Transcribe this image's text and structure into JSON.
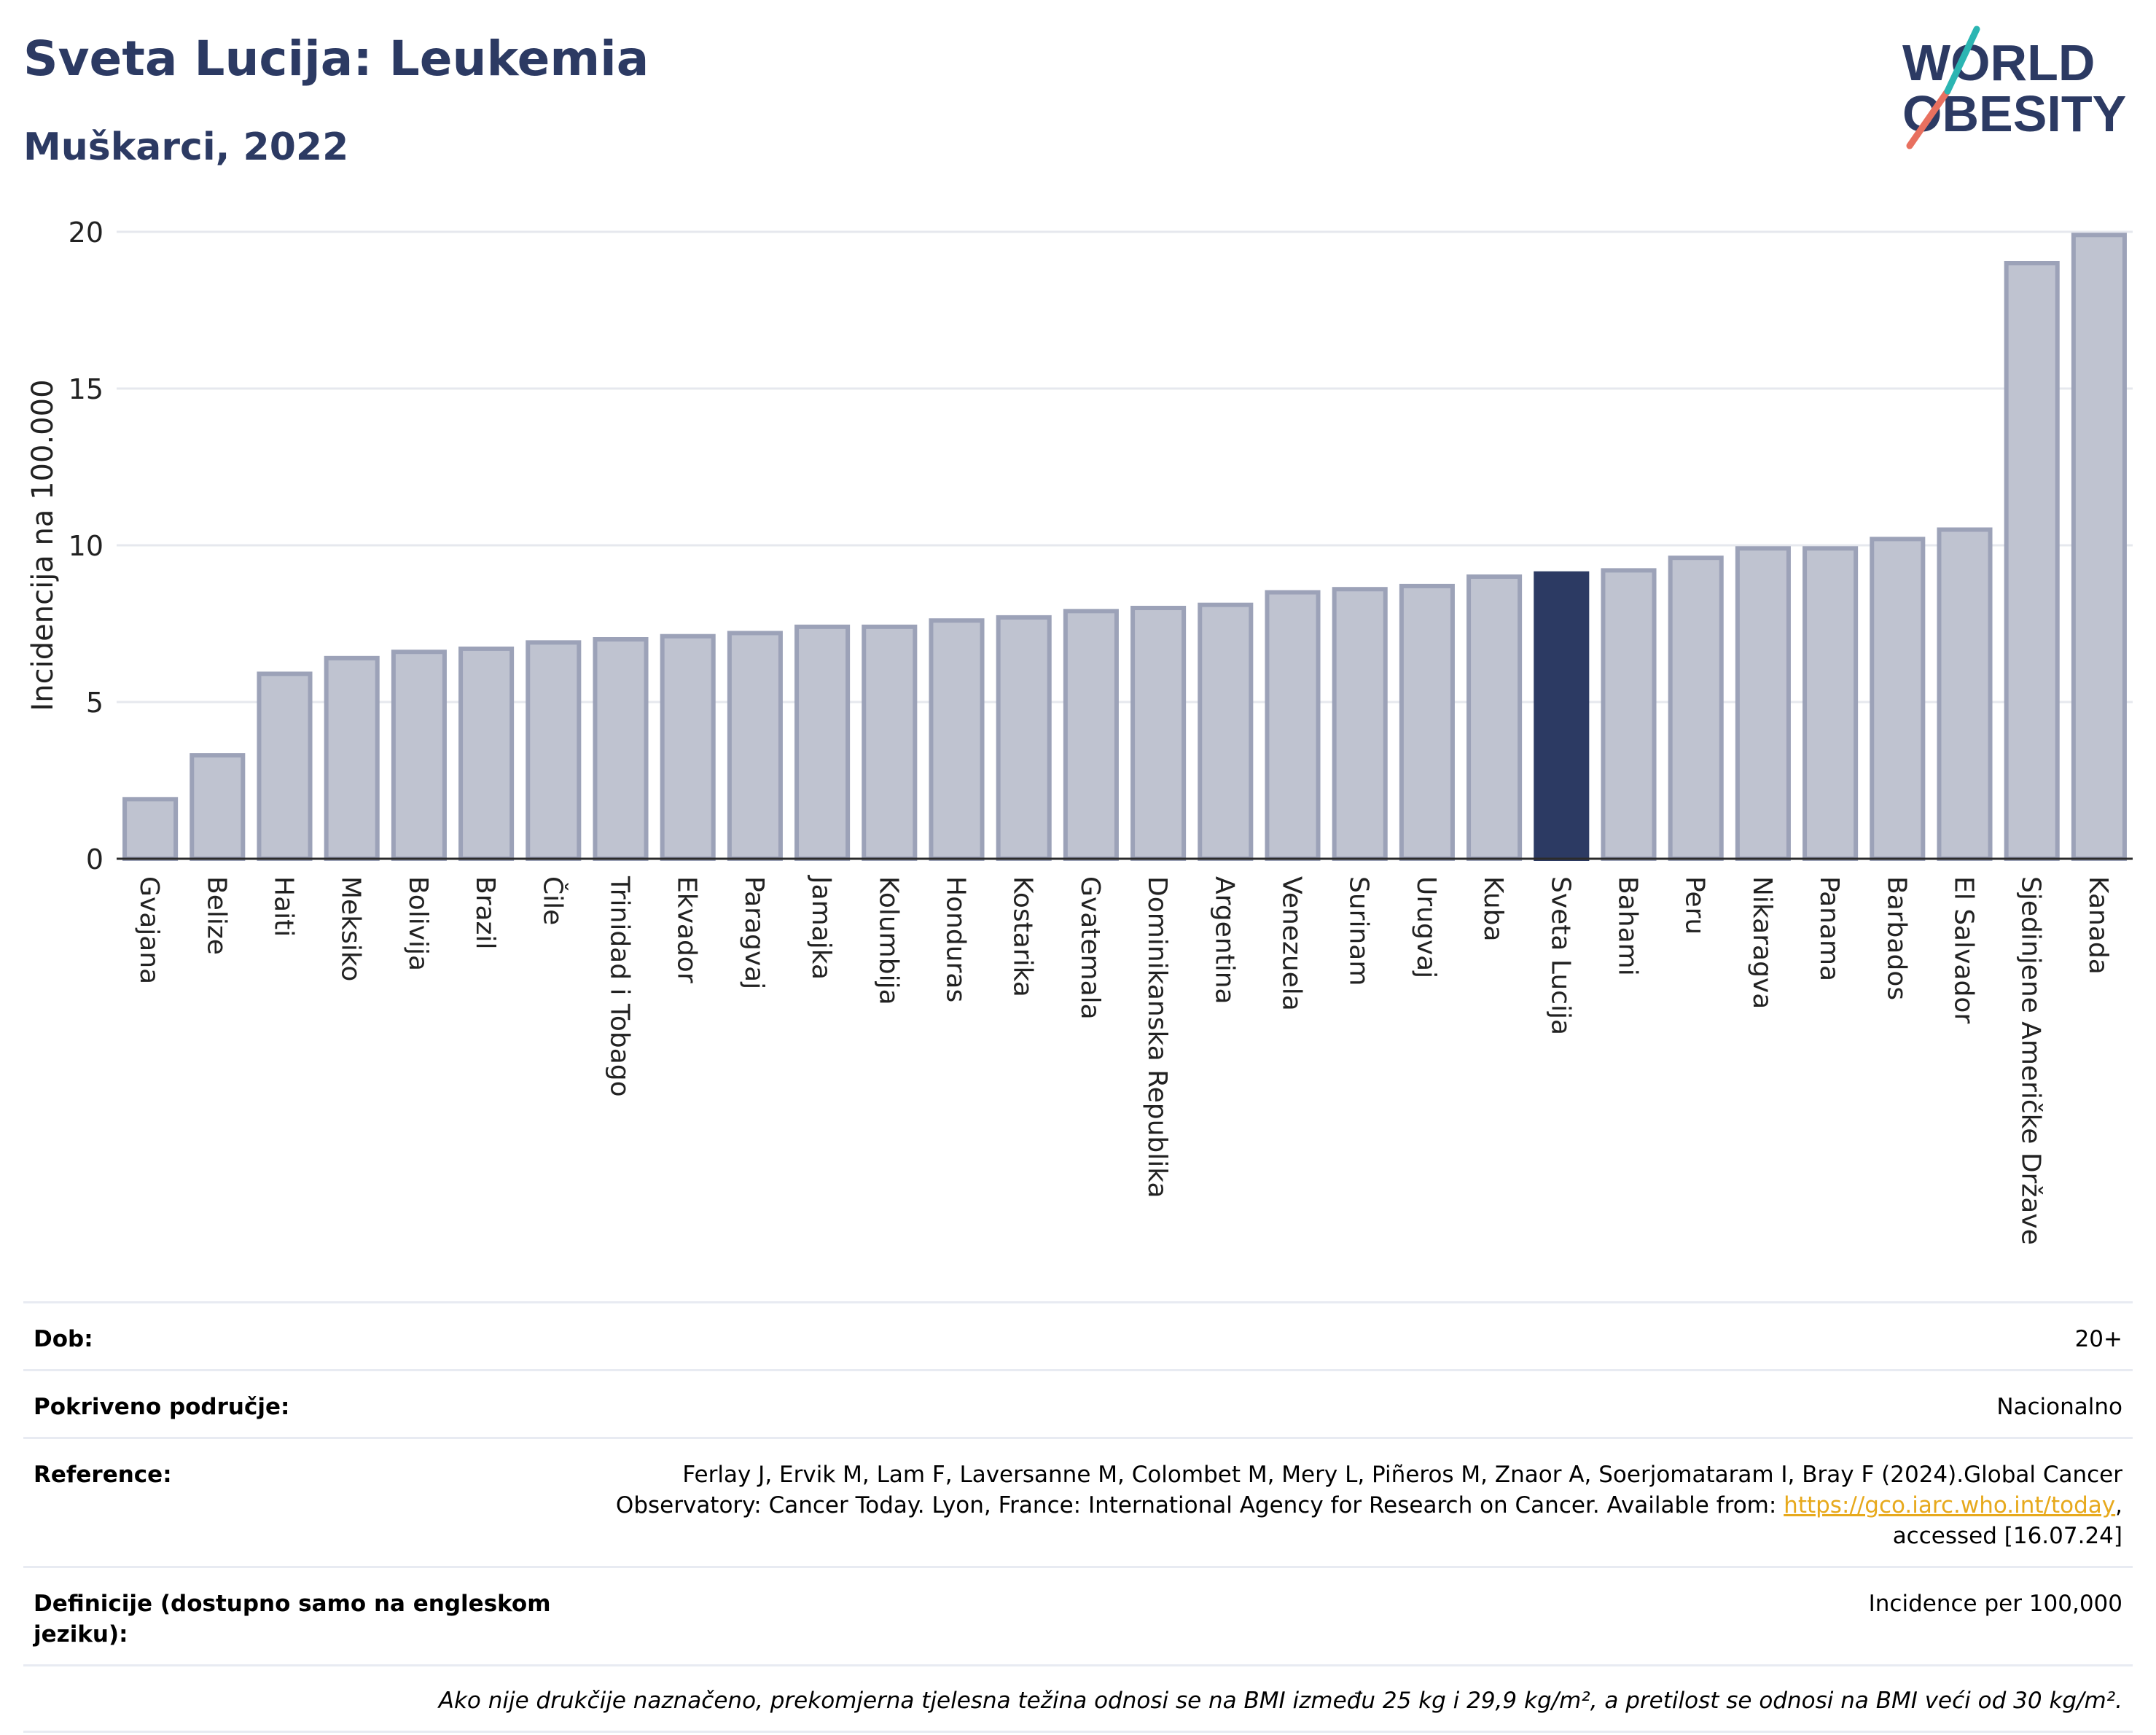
{
  "header": {
    "title": "Sveta Lucija: Leukemia",
    "subtitle": "Muškarci, 2022",
    "logo_text_line1": "WORLD",
    "logo_text_line2": "OBESITY"
  },
  "colors": {
    "brand_navy": "#2c3a63",
    "bar_fill": "#bfc3d0",
    "bar_stroke": "#9ca2b8",
    "highlight": "#2c3a63",
    "link": "#e7a91c",
    "logo_teal": "#2bb5b2",
    "logo_coral": "#e8705f"
  },
  "chart_data": {
    "type": "bar",
    "ylabel": "Incidencija na 100.000",
    "ylim": [
      0,
      20
    ],
    "yticks": [
      0,
      5,
      10,
      15,
      20
    ],
    "grid": true,
    "highlight_category": "Sveta Lucija",
    "categories": [
      "Gvajana",
      "Belize",
      "Haiti",
      "Meksiko",
      "Bolivija",
      "Brazil",
      "Čile",
      "Trinidad i Tobago",
      "Ekvador",
      "Paragvaj",
      "Jamajka",
      "Kolumbija",
      "Honduras",
      "Kostarika",
      "Gvatemala",
      "Dominikanska Republika",
      "Argentina",
      "Venezuela",
      "Surinam",
      "Urugvaj",
      "Kuba",
      "Sveta Lucija",
      "Bahami",
      "Peru",
      "Nikaragva",
      "Panama",
      "Barbados",
      "El Salvador",
      "Sjedinjene Američke Države",
      "Kanada"
    ],
    "values": [
      1.9,
      3.3,
      5.9,
      6.4,
      6.6,
      6.7,
      6.9,
      7.0,
      7.1,
      7.2,
      7.4,
      7.4,
      7.6,
      7.7,
      7.9,
      8.0,
      8.1,
      8.5,
      8.6,
      8.7,
      9.0,
      9.1,
      9.2,
      9.6,
      9.9,
      9.9,
      10.2,
      10.5,
      19.0,
      19.9
    ]
  },
  "meta": {
    "rows": [
      {
        "key": "Dob:",
        "value": "20+"
      },
      {
        "key": "Pokriveno područje:",
        "value": "Nacionalno"
      },
      {
        "key": "Reference:",
        "value_pre": "Ferlay J, Ervik M, Lam F, Laversanne M, Colombet M, Mery L, Piñeros M, Znaor A, Soerjomataram I, Bray F (2024).Global Cancer Observatory: Cancer Today. Lyon, France: International Agency for Research on Cancer. Available from: ",
        "link": "https://gco.iarc.who.int/today",
        "value_post": ", accessed [16.07.24]"
      },
      {
        "key": "Definicije (dostupno samo na engleskom jeziku):",
        "value": "Incidence per 100,000"
      }
    ],
    "note": "Ako nije drukčije naznačeno, prekomjerna tjelesna težina odnosi se na BMI između 25 kg i 29,9 kg/m², a pretilost se odnosi na BMI veći od 30 kg/m²."
  }
}
